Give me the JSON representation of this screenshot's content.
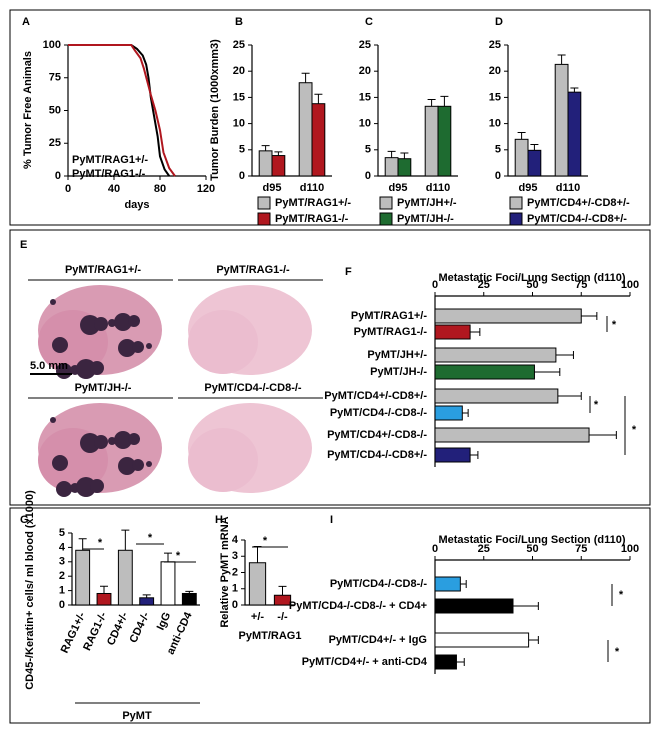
{
  "chart_data": [
    {
      "type": "line",
      "panel": "A",
      "ylabel": "% Tumor Free Animals",
      "xlabel": "days",
      "xlim": [
        0,
        120
      ],
      "xticks": [
        0,
        40,
        80,
        120
      ],
      "ylim": [
        0,
        100
      ],
      "yticks": [
        0,
        25,
        50,
        75,
        100
      ],
      "series": [
        {
          "name": "PyMT/RAG1+/-",
          "color": "#000000",
          "x": [
            0,
            55,
            60,
            65,
            68,
            70,
            72,
            75,
            78,
            80,
            84,
            88
          ],
          "values": [
            100,
            100,
            97,
            92,
            85,
            75,
            60,
            45,
            30,
            15,
            5,
            0
          ]
        },
        {
          "name": "PyMT/RAG1-/-",
          "color": "#b0171f",
          "x": [
            0,
            55,
            58,
            63,
            66,
            69,
            72,
            76,
            80,
            83,
            88,
            93
          ],
          "values": [
            100,
            100,
            96,
            90,
            82,
            72,
            62,
            50,
            35,
            18,
            6,
            0
          ]
        }
      ]
    },
    {
      "type": "bar",
      "panel": "B",
      "ylabel": "Tumor Burden (1000xmm3)",
      "categories": [
        "d95",
        "d110"
      ],
      "ylim": [
        0,
        25
      ],
      "yticks": [
        0,
        5,
        10,
        15,
        20,
        25
      ],
      "series": [
        {
          "name": "PyMT/RAG1+/-",
          "color": "#bdbdbd",
          "values": [
            4.8,
            17.8
          ],
          "errors": [
            1,
            1.8
          ]
        },
        {
          "name": "PyMT/RAG1-/-",
          "color": "#b0171f",
          "values": [
            3.9,
            13.8
          ],
          "errors": [
            0.7,
            1.8
          ]
        }
      ]
    },
    {
      "type": "bar",
      "panel": "C",
      "categories": [
        "d95",
        "d110"
      ],
      "ylim": [
        0,
        25
      ],
      "yticks": [
        0,
        5,
        10,
        15,
        20,
        25
      ],
      "series": [
        {
          "name": "PyMT/JH+/-",
          "color": "#bdbdbd",
          "values": [
            3.5,
            13.3
          ],
          "errors": [
            1.2,
            1.3
          ]
        },
        {
          "name": "PyMT/JH-/-",
          "color": "#1e6b30",
          "values": [
            3.3,
            13.3
          ],
          "errors": [
            1.1,
            1.9
          ]
        }
      ]
    },
    {
      "type": "bar",
      "panel": "D",
      "categories": [
        "d95",
        "d110"
      ],
      "ylim": [
        0,
        25
      ],
      "yticks": [
        0,
        5,
        10,
        15,
        20,
        25
      ],
      "series": [
        {
          "name": "PyMT/CD4+/-CD8+/-",
          "color": "#bdbdbd",
          "values": [
            7,
            21.3
          ],
          "errors": [
            1.3,
            1.8
          ]
        },
        {
          "name": "PyMT/CD4-/-CD8+/-",
          "color": "#22207a",
          "values": [
            4.9,
            16
          ],
          "errors": [
            1.1,
            0.8
          ]
        }
      ]
    },
    {
      "type": "image",
      "panel": "E",
      "labels": [
        "PyMT/RAG1+/-",
        "PyMT/RAG1-/-",
        "PyMT/JH-/-",
        "PyMT/CD4-/-CD8-/-"
      ],
      "scale_bar": "5.0 mm"
    },
    {
      "type": "hbar",
      "panel": "F",
      "title": "Metastatic Foci/Lung Section (d110)",
      "xlim": [
        0,
        100
      ],
      "xticks": [
        0,
        25,
        50,
        75,
        100
      ],
      "categories": [
        "PyMT/RAG1+/-",
        "PyMT/RAG1-/-",
        "PyMT/JH+/-",
        "PyMT/JH-/-",
        "PyMT/CD4+/-CD8+/-",
        "PyMT/CD4-/-CD8-/-",
        "PyMT/CD4+/-CD8-/-",
        "PyMT/CD4-/-CD8+/-"
      ],
      "values": [
        75,
        18,
        62,
        51,
        63,
        14,
        79,
        18
      ],
      "errors": [
        8,
        5,
        9,
        13,
        12,
        3,
        14,
        4
      ],
      "colors": [
        "#bdbdbd",
        "#b0171f",
        "#bdbdbd",
        "#1e6b30",
        "#bdbdbd",
        "#2a9ee0",
        "#bdbdbd",
        "#22207a"
      ],
      "annotations": [
        "*",
        "*",
        "*"
      ]
    },
    {
      "type": "bar",
      "panel": "G",
      "ylabel": "CD45-/Keratin+ cells/ ml blood (x1000)",
      "xlabel": "PyMT",
      "categories": [
        "RAG1+/-",
        "RAG1-/-",
        "CD4+/-",
        "CD4-/-",
        "IgG",
        "anti-CD4"
      ],
      "values": [
        3.8,
        0.8,
        3.8,
        0.5,
        3.0,
        0.8
      ],
      "errors": [
        0.8,
        0.5,
        1.4,
        0.2,
        0.6,
        0.15
      ],
      "colors": [
        "#bdbdbd",
        "#b0171f",
        "#bdbdbd",
        "#22207a",
        "#ffffff",
        "#000000"
      ],
      "ylim": [
        0,
        5
      ],
      "yticks": [
        0,
        1,
        2,
        3,
        4,
        5
      ],
      "annotations": [
        "*",
        "*",
        "*"
      ]
    },
    {
      "type": "bar",
      "panel": "H",
      "ylabel": "Relative PyMT mRNA",
      "xlabel": "PyMT/RAG1",
      "categories": [
        "+/-",
        "-/-"
      ],
      "values": [
        2.6,
        0.6
      ],
      "errors": [
        1,
        0.55
      ],
      "colors": [
        "#bdbdbd",
        "#b0171f"
      ],
      "ylim": [
        0,
        4
      ],
      "yticks": [
        0,
        1,
        2,
        3,
        4
      ],
      "annotations": [
        "*"
      ]
    },
    {
      "type": "hbar",
      "panel": "I",
      "title": "Metastatic Foci/Lung Section (d110)",
      "xlim": [
        0,
        100
      ],
      "xticks": [
        0,
        25,
        50,
        75,
        100
      ],
      "categories": [
        "PyMT/CD4-/-CD8-/-",
        "PyMT/CD4-/-CD8-/- + CD4+",
        "PyMT/CD4+/- + IgG",
        "PyMT/CD4+/- + anti-CD4"
      ],
      "values": [
        13,
        40,
        48,
        11
      ],
      "errors": [
        3,
        13,
        5,
        4
      ],
      "colors": [
        "#2a9ee0",
        "#000000",
        "#ffffff",
        "#000000"
      ],
      "annotations": [
        "*",
        "*"
      ]
    }
  ]
}
